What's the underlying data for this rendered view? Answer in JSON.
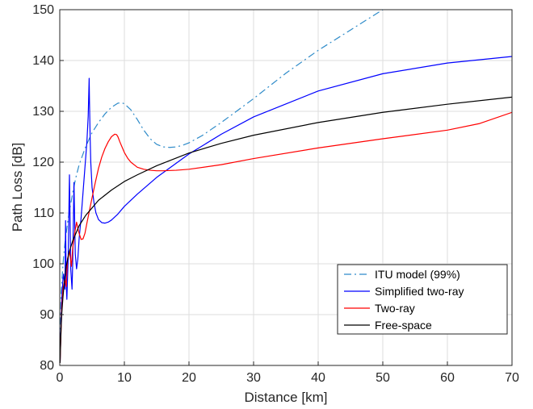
{
  "chart_data": {
    "type": "line",
    "title": "",
    "xlabel": "Distance [km]",
    "ylabel": "Path Loss [dB]",
    "xlim": [
      0,
      70
    ],
    "ylim": [
      80,
      150
    ],
    "xticks": [
      "0",
      "10",
      "20",
      "30",
      "40",
      "50",
      "60",
      "70"
    ],
    "yticks": [
      "80",
      "90",
      "100",
      "110",
      "120",
      "130",
      "140",
      "150"
    ],
    "grid": true,
    "legend_position": "lower-right",
    "series": [
      {
        "name": "ITU model (99%)",
        "color": "#2e8bc9",
        "style": "dashdot",
        "x": [
          0.05,
          0.2,
          0.4,
          0.6,
          0.8,
          1.0,
          1.2,
          1.5,
          1.8,
          2.0,
          2.5,
          3.0,
          4.0,
          5.0,
          6.0,
          7.0,
          8.0,
          9.0,
          9.5,
          10.0,
          11.0,
          12.0,
          13.0,
          14.0,
          15.0,
          16.0,
          17.0,
          18.0,
          19.0,
          20.0,
          22.0,
          25.0,
          30.0,
          35.0,
          40.0,
          45.0,
          50.0
        ],
        "y": [
          82.0,
          94.0,
          98.0,
          101.5,
          104.0,
          106.0,
          108.0,
          110.5,
          112.5,
          114.0,
          117.0,
          119.5,
          123.0,
          125.8,
          127.8,
          129.5,
          130.8,
          131.6,
          131.7,
          131.5,
          130.3,
          128.4,
          126.3,
          124.6,
          123.5,
          123.0,
          122.9,
          123.0,
          123.3,
          123.8,
          125.2,
          127.8,
          132.5,
          137.5,
          142.0,
          146.0,
          150.0
        ]
      },
      {
        "name": "Simplified two-ray",
        "color": "#0000ff",
        "style": "solid",
        "x": [
          0.05,
          0.3,
          0.5,
          0.6,
          0.8,
          0.9,
          1.0,
          1.1,
          1.3,
          1.5,
          1.7,
          1.9,
          2.0,
          2.2,
          2.4,
          2.6,
          2.8,
          3.0,
          3.3,
          3.6,
          3.9,
          4.2,
          4.4,
          4.5,
          4.55,
          4.6,
          4.7,
          4.8,
          5.0,
          5.3,
          5.6,
          6.0,
          6.5,
          7.0,
          7.5,
          8.0,
          9.0,
          10.0,
          12.0,
          15.0,
          20.0,
          25.0,
          30.0,
          40.0,
          50.0,
          60.0,
          70.0
        ],
        "y": [
          80.5,
          93.0,
          97.0,
          98.0,
          95.0,
          108.5,
          96.0,
          93.0,
          101.0,
          117.5,
          99.0,
          95.0,
          100.0,
          116.0,
          102.0,
          99.0,
          101.0,
          105.0,
          109.0,
          114.0,
          119.0,
          124.0,
          129.0,
          134.0,
          136.5,
          132.0,
          125.0,
          120.0,
          115.0,
          112.0,
          110.0,
          108.7,
          108.1,
          108.0,
          108.2,
          108.6,
          109.8,
          111.3,
          113.7,
          117.0,
          121.6,
          125.5,
          128.9,
          134.0,
          137.4,
          139.5,
          140.8
        ]
      },
      {
        "name": "Two-ray",
        "color": "#ff0000",
        "style": "solid",
        "x": [
          0.05,
          0.3,
          0.5,
          0.8,
          1.0,
          1.2,
          1.5,
          1.8,
          2.0,
          2.3,
          2.6,
          2.8,
          3.0,
          3.3,
          3.6,
          3.9,
          4.2,
          4.6,
          5.0,
          5.5,
          6.0,
          6.5,
          7.0,
          7.5,
          8.0,
          8.5,
          8.8,
          9.0,
          9.3,
          9.7,
          10.0,
          10.5,
          11.0,
          12.0,
          13.0,
          14.0,
          15.0,
          16.0,
          18.0,
          20.0,
          25.0,
          30.0,
          40.0,
          50.0,
          60.0,
          65.0,
          70.0
        ],
        "y": [
          80.5,
          91.0,
          95.0,
          97.0,
          95.5,
          101.0,
          102.5,
          99.5,
          103.0,
          106.0,
          108.2,
          107.0,
          106.0,
          104.8,
          104.9,
          106.0,
          108.0,
          110.5,
          113.0,
          116.0,
          118.8,
          121.0,
          122.7,
          124.0,
          125.0,
          125.5,
          125.4,
          125.0,
          124.0,
          122.8,
          121.9,
          120.8,
          120.0,
          119.0,
          118.6,
          118.4,
          118.3,
          118.3,
          118.4,
          118.6,
          119.5,
          120.7,
          122.8,
          124.6,
          126.3,
          127.6,
          129.8
        ]
      },
      {
        "name": "Free-space",
        "color": "#000000",
        "style": "solid",
        "x": [
          0.05,
          0.1,
          0.2,
          0.3,
          0.5,
          0.8,
          1.0,
          1.5,
          2.0,
          3.0,
          4.0,
          5.0,
          6.0,
          8.0,
          10.0,
          12.0,
          15.0,
          20.0,
          25.0,
          30.0,
          40.0,
          50.0,
          60.0,
          70.0
        ],
        "y": [
          80.5,
          83.0,
          87.0,
          90.0,
          93.5,
          97.5,
          99.5,
          102.5,
          104.5,
          107.5,
          109.5,
          111.0,
          112.5,
          114.5,
          116.2,
          117.5,
          119.3,
          121.8,
          123.7,
          125.3,
          127.8,
          129.8,
          131.4,
          132.8
        ]
      }
    ]
  }
}
